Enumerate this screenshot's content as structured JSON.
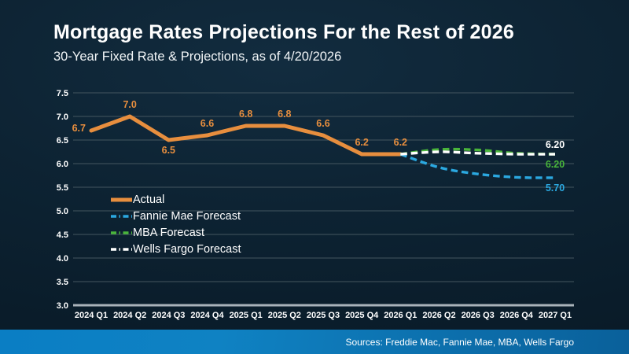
{
  "header": {
    "title": "Mortgage Rates Projections For the Rest of 2026",
    "subtitle": "30-Year Fixed Rate & Projections, as of 4/20/2026"
  },
  "footer": {
    "sources_label": "Sources: Freddie Mac, Fannie Mae, MBA, Wells Fargo"
  },
  "colors": {
    "actual": "#E78E3E",
    "fannie_mae": "#2BA8E0",
    "mba": "#49B53B",
    "wells_fargo": "#FFFFFF",
    "gridline": "#44565f",
    "axis_line": "#a9b3ba",
    "footer_bar_left": "#0a7ec4",
    "footer_bar_right": "#0a609a",
    "background": "#0d2333"
  },
  "chart_data": {
    "type": "line",
    "title": "Mortgage Rates Projections For the Rest of 2026",
    "subtitle": "30-Year Fixed Rate & Projections, as of 4/20/2026",
    "categories": [
      "2024 Q1",
      "2024 Q2",
      "2024 Q3",
      "2024 Q4",
      "2025 Q1",
      "2025 Q2",
      "2025 Q3",
      "2025 Q4",
      "2026 Q1",
      "2026 Q2",
      "2026 Q3",
      "2026 Q4",
      "2027 Q1"
    ],
    "ylim": [
      3.0,
      7.5
    ],
    "yticks": [
      3.0,
      3.5,
      4.0,
      4.5,
      5.0,
      5.5,
      6.0,
      6.5,
      7.0,
      7.5
    ],
    "grid": true,
    "legend_position": "inside-left",
    "series": [
      {
        "name": "Actual",
        "slug": "actual",
        "style": "solid",
        "color": "#E78E3E",
        "values": [
          6.7,
          7.0,
          6.5,
          6.6,
          6.8,
          6.8,
          6.6,
          6.2,
          6.2,
          null,
          null,
          null,
          null
        ],
        "point_labels": [
          "6.7",
          "7.0",
          "6.5",
          "6.6",
          "6.8",
          "6.8",
          "6.6",
          "6.2",
          "6.2"
        ],
        "label_placement": [
          "left",
          "above",
          "below",
          "above",
          "above",
          "above",
          "above",
          "above",
          "above"
        ]
      },
      {
        "name": "Fannie Mae Forecast",
        "slug": "fannie-mae-forecast",
        "style": "dashed",
        "color": "#2BA8E0",
        "values": [
          null,
          null,
          null,
          null,
          null,
          null,
          null,
          null,
          6.2,
          5.92,
          5.78,
          5.71,
          5.7
        ],
        "end_label": "5.70",
        "end_label_side": "below"
      },
      {
        "name": "MBA Forecast",
        "slug": "mba-forecast",
        "style": "dashed",
        "color": "#49B53B",
        "values": [
          null,
          null,
          null,
          null,
          null,
          null,
          null,
          null,
          6.2,
          6.3,
          6.29,
          6.22,
          6.2
        ],
        "end_label": "6.20",
        "end_label_side": "below"
      },
      {
        "name": "Wells Fargo Forecast",
        "slug": "wells-fargo-forecast",
        "style": "dashed",
        "color": "#FFFFFF",
        "values": [
          null,
          null,
          null,
          null,
          null,
          null,
          null,
          null,
          6.2,
          6.25,
          6.22,
          6.2,
          6.2
        ],
        "end_label": "6.20",
        "end_label_side": "above"
      }
    ]
  }
}
